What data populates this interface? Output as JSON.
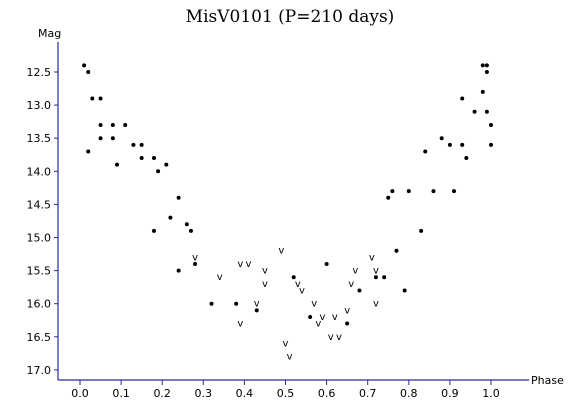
{
  "chart_data": {
    "type": "scatter",
    "title": "MisV0101 (P=210 days)",
    "xlabel": "Phase",
    "ylabel": "Mag",
    "xlim": [
      -0.05,
      1.05
    ],
    "ylim": [
      17.1,
      12.15
    ],
    "y_inverted": true,
    "x_ticks": [
      "0.0",
      "0.1",
      "0.2",
      "0.3",
      "0.4",
      "0.5",
      "0.6",
      "0.7",
      "0.8",
      "0.9",
      "1.0"
    ],
    "y_ticks": [
      "12.5",
      "13.0",
      "13.5",
      "14.0",
      "14.5",
      "15.0",
      "15.5",
      "16.0",
      "16.5",
      "17.0"
    ],
    "grid": false,
    "colors": {
      "axis": "#2a2aa0",
      "points": "#000000"
    },
    "series": [
      {
        "marker": "dot",
        "points": [
          [
            0.01,
            12.4
          ],
          [
            0.02,
            12.5
          ],
          [
            0.02,
            13.7
          ],
          [
            0.03,
            12.9
          ],
          [
            0.05,
            12.9
          ],
          [
            0.05,
            13.3
          ],
          [
            0.05,
            13.5
          ],
          [
            0.08,
            13.3
          ],
          [
            0.08,
            13.5
          ],
          [
            0.09,
            13.9
          ],
          [
            0.11,
            13.3
          ],
          [
            0.13,
            13.6
          ],
          [
            0.15,
            13.6
          ],
          [
            0.15,
            13.8
          ],
          [
            0.18,
            13.8
          ],
          [
            0.18,
            14.9
          ],
          [
            0.19,
            14.0
          ],
          [
            0.21,
            13.9
          ],
          [
            0.22,
            14.7
          ],
          [
            0.24,
            14.4
          ],
          [
            0.24,
            15.5
          ],
          [
            0.26,
            14.8
          ],
          [
            0.27,
            14.9
          ],
          [
            0.28,
            15.4
          ],
          [
            0.32,
            16.0
          ],
          [
            0.38,
            16.0
          ],
          [
            0.43,
            16.1
          ],
          [
            0.52,
            15.6
          ],
          [
            0.56,
            16.2
          ],
          [
            0.6,
            15.4
          ],
          [
            0.65,
            16.3
          ],
          [
            0.68,
            15.8
          ],
          [
            0.72,
            15.6
          ],
          [
            0.74,
            15.6
          ],
          [
            0.75,
            14.4
          ],
          [
            0.76,
            14.3
          ],
          [
            0.77,
            15.2
          ],
          [
            0.79,
            15.8
          ],
          [
            0.8,
            14.3
          ],
          [
            0.83,
            14.9
          ],
          [
            0.84,
            13.7
          ],
          [
            0.86,
            14.3
          ],
          [
            0.88,
            13.5
          ],
          [
            0.9,
            13.6
          ],
          [
            0.91,
            14.3
          ],
          [
            0.93,
            12.9
          ],
          [
            0.93,
            13.6
          ],
          [
            0.94,
            13.8
          ],
          [
            0.96,
            13.1
          ],
          [
            0.98,
            12.4
          ],
          [
            0.99,
            12.5
          ],
          [
            0.99,
            12.4
          ],
          [
            0.99,
            13.1
          ],
          [
            1.0,
            13.3
          ],
          [
            1.0,
            13.6
          ],
          [
            0.98,
            12.8
          ]
        ]
      },
      {
        "marker": "upper-limit",
        "points": [
          [
            0.28,
            15.3
          ],
          [
            0.34,
            15.6
          ],
          [
            0.39,
            16.3
          ],
          [
            0.39,
            15.4
          ],
          [
            0.41,
            15.4
          ],
          [
            0.43,
            16.0
          ],
          [
            0.45,
            15.7
          ],
          [
            0.45,
            15.5
          ],
          [
            0.49,
            15.2
          ],
          [
            0.5,
            16.6
          ],
          [
            0.51,
            16.8
          ],
          [
            0.53,
            15.7
          ],
          [
            0.54,
            15.8
          ],
          [
            0.57,
            16.0
          ],
          [
            0.58,
            16.3
          ],
          [
            0.59,
            16.2
          ],
          [
            0.61,
            16.5
          ],
          [
            0.62,
            16.2
          ],
          [
            0.63,
            16.5
          ],
          [
            0.65,
            16.1
          ],
          [
            0.66,
            15.7
          ],
          [
            0.67,
            15.5
          ],
          [
            0.71,
            15.3
          ],
          [
            0.72,
            15.5
          ],
          [
            0.72,
            16.0
          ]
        ]
      }
    ]
  }
}
